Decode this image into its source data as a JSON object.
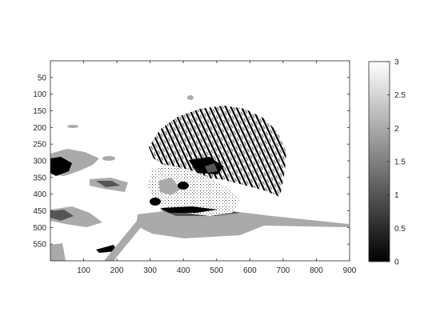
{
  "chart_data": {
    "type": "heatmap",
    "title": "",
    "xlabel": "",
    "ylabel": "",
    "xlim": [
      0,
      900
    ],
    "ylim": [
      600,
      0
    ],
    "x_ticks": [
      100,
      200,
      300,
      400,
      500,
      600,
      700,
      800,
      900
    ],
    "y_ticks": [
      50,
      100,
      150,
      200,
      250,
      300,
      350,
      400,
      450,
      500,
      550
    ],
    "colormap": "gray",
    "color_levels": [
      0,
      1,
      2,
      3
    ],
    "colorbar": {
      "range": [
        0,
        3
      ],
      "ticks": [
        "0",
        "0.5",
        "1",
        "1.5",
        "2",
        "2.5",
        "3"
      ],
      "placement": "right"
    },
    "level_colors": {
      "0": "#000000",
      "1": "#555555",
      "2": "#aaaaaa",
      "3": "#ffffff"
    },
    "subject": "posterized grayscale image of a hedgehog (4 intensity levels)"
  }
}
